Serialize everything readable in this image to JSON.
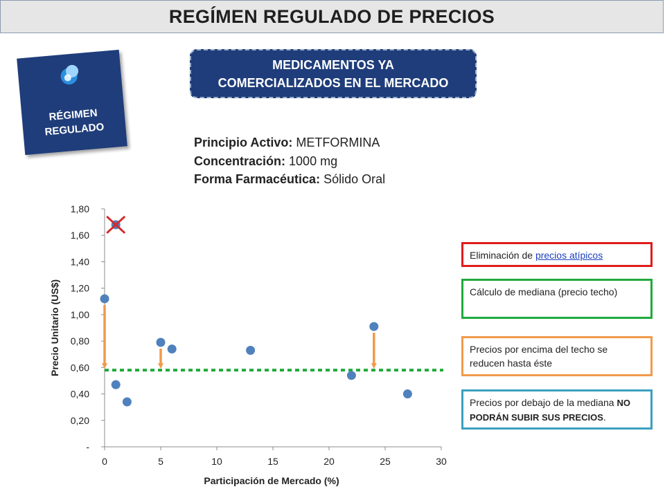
{
  "header": {
    "title": "REGÍMEN REGULADO DE PRECIOS"
  },
  "badge": {
    "label_line1": "RÉGIMEN",
    "label_line2": "REGULADO",
    "icon": "pin-icon"
  },
  "section": {
    "line1": "MEDICAMENTOS YA",
    "line2": "COMERCIALIZADOS EN EL MERCADO"
  },
  "product": {
    "active_label": "Principio Activo:",
    "active_value": "METFORMINA",
    "conc_label": "Concentración:",
    "conc_value": "1000 mg",
    "form_label": "Forma Farmacéutica:",
    "form_value": "Sólido Oral"
  },
  "legend_boxes": {
    "red_prefix": "Eliminación de ",
    "red_link": "precios atípicos",
    "green": "Cálculo de mediana (precio techo)",
    "orange": "Precios por encima del techo se reducen hasta éste",
    "blue_prefix": "Precios por debajo de la mediana ",
    "blue_bold": "NO PODRÁN SUBIR SUS PRECIOS",
    "blue_suffix": "."
  },
  "colors": {
    "navy": "#1f3d7a",
    "point": "#4f81bd",
    "median": "#1faa3c",
    "arrow": "#f09a4a",
    "outlier_x": "#d42a2a"
  },
  "chart_data": {
    "type": "scatter",
    "xlabel": "Participación de Mercado (%)",
    "ylabel": "Precio Unitario (US$)",
    "xlim": [
      0,
      30
    ],
    "ylim": [
      0,
      1.8
    ],
    "x_ticks": [
      "0",
      "5",
      "10",
      "15",
      "20",
      "25",
      "30"
    ],
    "y_ticks": [
      "-",
      "0,20",
      "0,40",
      "0,60",
      "0,80",
      "1,00",
      "1,20",
      "1,40",
      "1,60",
      "1,80"
    ],
    "points": [
      {
        "x": 1.0,
        "y": 1.68,
        "outlier": true
      },
      {
        "x": 0.0,
        "y": 1.12
      },
      {
        "x": 1.0,
        "y": 0.47
      },
      {
        "x": 2.0,
        "y": 0.34
      },
      {
        "x": 5.0,
        "y": 0.79
      },
      {
        "x": 6.0,
        "y": 0.74
      },
      {
        "x": 13.0,
        "y": 0.73
      },
      {
        "x": 22.0,
        "y": 0.54
      },
      {
        "x": 24.0,
        "y": 0.91
      },
      {
        "x": 27.0,
        "y": 0.4
      }
    ],
    "median": 0.58,
    "reductions": [
      {
        "x": 0.0,
        "from": 1.12,
        "to": 0.58
      },
      {
        "x": 5.0,
        "from": 0.79,
        "to": 0.58
      },
      {
        "x": 24.0,
        "from": 0.91,
        "to": 0.58
      }
    ]
  }
}
